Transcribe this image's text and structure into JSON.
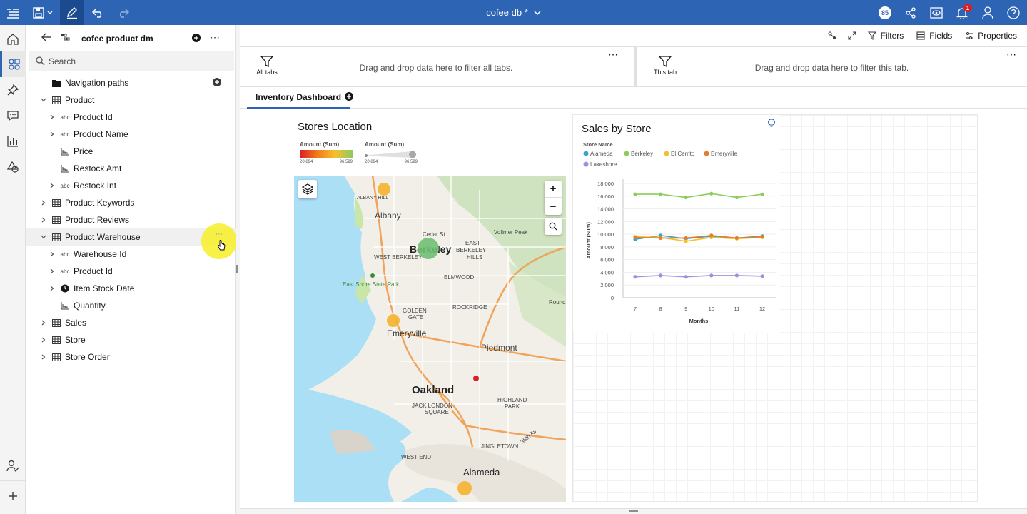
{
  "topbar": {
    "title": "cofee db *",
    "notif_badge": "1",
    "user_badge": "85",
    "icons": [
      "menu-icon",
      "save-icon",
      "edit-icon",
      "undo-icon",
      "redo-icon",
      "share-icon",
      "view-icon",
      "bell-icon",
      "user-icon",
      "help-icon"
    ]
  },
  "rail": {
    "icons": [
      "home-icon",
      "data-icon",
      "pin-icon",
      "comment-icon",
      "chart-icon",
      "shapes-icon",
      "user-check-icon",
      "add-icon"
    ]
  },
  "panel": {
    "title": "cofee product dm",
    "search_placeholder": "Search",
    "tree": [
      {
        "label": "Navigation paths",
        "type": "folder",
        "level": 0,
        "chev": "none"
      },
      {
        "label": "Product",
        "type": "table",
        "level": 0,
        "chev": "down"
      },
      {
        "label": "Product Id",
        "type": "abc",
        "level": 1,
        "chev": "right"
      },
      {
        "label": "Product Name",
        "type": "abc",
        "level": 1,
        "chev": "right"
      },
      {
        "label": "Price",
        "type": "measure",
        "level": 1,
        "chev": "none"
      },
      {
        "label": "Restock Amt",
        "type": "measure",
        "level": 1,
        "chev": "none"
      },
      {
        "label": "Restock Int",
        "type": "abc",
        "level": 1,
        "chev": "right"
      },
      {
        "label": "Product Keywords",
        "type": "table",
        "level": 0,
        "chev": "right"
      },
      {
        "label": "Product Reviews",
        "type": "table",
        "level": 0,
        "chev": "right"
      },
      {
        "label": "Product Warehouse",
        "type": "table",
        "level": 0,
        "chev": "down"
      },
      {
        "label": "Warehouse Id",
        "type": "abc",
        "level": 1,
        "chev": "right"
      },
      {
        "label": "Product Id",
        "type": "abc",
        "level": 1,
        "chev": "right"
      },
      {
        "label": "Item Stock Date",
        "type": "clock",
        "level": 1,
        "chev": "right"
      },
      {
        "label": "Quantity",
        "type": "measure",
        "level": 1,
        "chev": "none"
      },
      {
        "label": "Sales",
        "type": "table",
        "level": 0,
        "chev": "right"
      },
      {
        "label": "Store",
        "type": "table",
        "level": 0,
        "chev": "right"
      },
      {
        "label": "Store Order",
        "type": "table",
        "level": 0,
        "chev": "right"
      }
    ]
  },
  "toolbar": {
    "filters_label": "Filters",
    "fields_label": "Fields",
    "properties_label": "Properties"
  },
  "filters": {
    "all_tabs_label": "All tabs",
    "all_tabs_text": "Drag and drop data here to filter all tabs.",
    "this_tab_label": "This tab",
    "this_tab_text": "Drag and drop data here to filter this tab."
  },
  "tabs": {
    "active": "Inventory Dashboard"
  },
  "map_widget": {
    "title": "Stores Location",
    "legend_color_title": "Amount (Sum)",
    "legend_color_min": "20,894",
    "legend_color_max": "96,599",
    "legend_size_title": "Amount (Sum)",
    "legend_size_min": "20,894",
    "legend_size_max": "96,599",
    "place_labels": [
      "Albany",
      "Berkeley",
      "Emeryville",
      "Piedmont",
      "Oakland",
      "Alameda",
      "WEST BERKELEY",
      "EAST",
      "BERKELEY",
      "HILLS",
      "ELMWOOD",
      "GOLDEN",
      "GATE",
      "ROCKRIDGE",
      "East Shore State Park",
      "Cedar St",
      "Vollmer Peak",
      "ALBANY HILL",
      "JACK LONDON",
      "SQUARE",
      "HIGHLAND",
      "PARK",
      "WEST END",
      "JINGLETOWN",
      "Round",
      "38th Av"
    ]
  },
  "chart_data": {
    "type": "line",
    "title": "Sales by Store",
    "legend_title": "Store Name",
    "x": [
      7,
      8,
      9,
      10,
      11,
      12
    ],
    "xlabel": "Months",
    "ylabel": "Amount (Sum)",
    "ylim": [
      0,
      18000
    ],
    "yticks": [
      "18,000",
      "16,000",
      "14,000",
      "12,000",
      "10,000",
      "8,000",
      "6,000",
      "4,000",
      "2,000",
      "0"
    ],
    "series": [
      {
        "name": "Alameda",
        "color": "#33a6cc",
        "values": [
          9200,
          9800,
          9300,
          9700,
          9400,
          9700
        ]
      },
      {
        "name": "Berkeley",
        "color": "#8ccb5e",
        "values": [
          16300,
          16300,
          15800,
          16400,
          15800,
          16300
        ]
      },
      {
        "name": "El Cerrito",
        "color": "#f5c02e",
        "values": [
          9600,
          9500,
          8900,
          9500,
          9300,
          9500
        ]
      },
      {
        "name": "Emeryville",
        "color": "#e67c2e",
        "values": [
          9500,
          9400,
          9400,
          9800,
          9400,
          9600
        ]
      },
      {
        "name": "Lakeshore",
        "color": "#a08fde",
        "values": [
          3300,
          3500,
          3300,
          3500,
          3500,
          3400
        ]
      }
    ]
  }
}
